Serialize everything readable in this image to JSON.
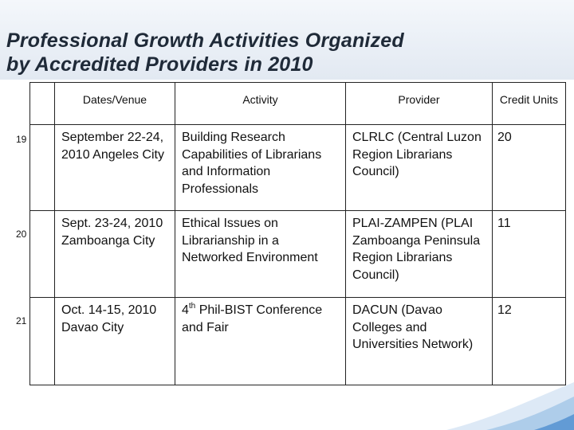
{
  "title": {
    "line1": "Professional Growth Activities Organized",
    "line2": "by Accredited Providers in 2010"
  },
  "table": {
    "headers": [
      "",
      "Dates/Venue",
      "Activity",
      "Provider",
      "Credit Units"
    ],
    "rows": [
      {
        "number": "19",
        "dates": "September 22-24, 2010 Angeles City",
        "activity": "Building Research Capabilities of Librarians and Information Professionals",
        "provider": "CLRLC (Central Luzon Region Librarians Council)",
        "credit": "20"
      },
      {
        "number": "20",
        "dates": "Sept. 23-24, 2010 Zamboanga City",
        "activity": "Ethical Issues on Librarianship in a Networked Environment",
        "provider": "PLAI-ZAMPEN (PLAI Zamboanga Peninsula Region Librarians Council)",
        "credit": "11"
      },
      {
        "number": "21",
        "dates": "Oct.  14-15, 2010 Davao City",
        "activity_ordinal": "4",
        "activity_suffix": "th",
        "activity_rest": " Phil-BIST Conference and Fair",
        "provider": "DACUN (Davao Colleges  and Universities Network)",
        "credit": "12"
      }
    ]
  }
}
